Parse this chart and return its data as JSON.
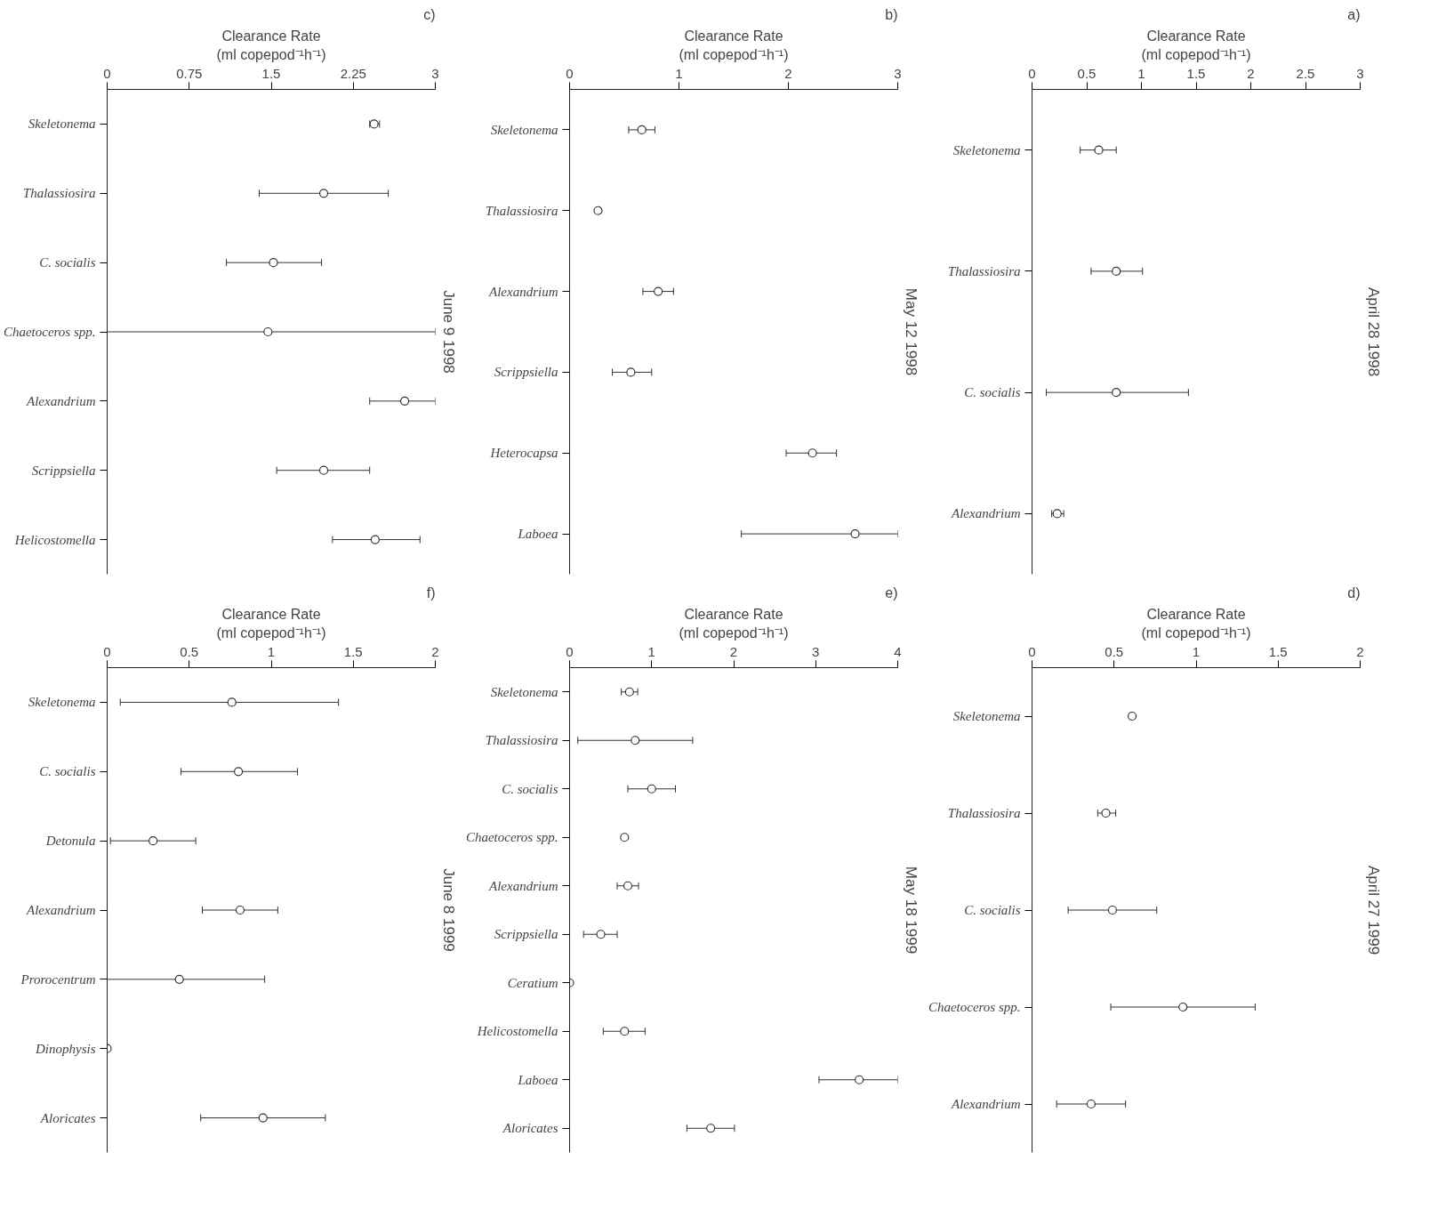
{
  "chart_data": [
    {
      "type": "scatter",
      "orientation": "horizontal",
      "title": "a)",
      "subtitle": "April 28 1998",
      "xlabel": "Clearance Rate\n(ml copepod⁻¹h⁻¹)",
      "marker": "circle",
      "color": "#333333",
      "xlim": [
        0,
        3
      ],
      "xticks": [
        0,
        0.5,
        1,
        1.5,
        2,
        2.5,
        3
      ],
      "categories": [
        "Skeletonema",
        "Thalassiosira",
        "C. socialis",
        "Alexandrium"
      ],
      "values": [
        0.61,
        0.77,
        0.77,
        0.23
      ],
      "errors": [
        [
          0.44,
          0.77
        ],
        [
          0.54,
          1.01
        ],
        [
          0.13,
          1.43
        ],
        [
          0.18,
          0.29
        ]
      ]
    },
    {
      "type": "scatter",
      "orientation": "horizontal",
      "title": "b)",
      "subtitle": "May 12 1998",
      "xlabel": "Clearance Rate\n(ml copepod⁻¹h⁻¹)",
      "marker": "circle",
      "color": "#333333",
      "xlim": [
        0,
        3
      ],
      "xticks": [
        0,
        1,
        2,
        3
      ],
      "categories": [
        "Skeletonema",
        "Thalassiosira",
        "Alexandrium",
        "Scrippsiella",
        "Heterocapsa",
        "Laboea"
      ],
      "values": [
        0.66,
        0.26,
        0.81,
        0.56,
        2.22,
        2.61
      ],
      "errors": [
        [
          0.54,
          0.78
        ],
        null,
        [
          0.67,
          0.95
        ],
        [
          0.39,
          0.75
        ],
        [
          1.98,
          2.44
        ],
        [
          1.57,
          3.0
        ]
      ]
    },
    {
      "type": "scatter",
      "orientation": "horizontal",
      "title": "c)",
      "subtitle": "June 9 1998",
      "xlabel": "Clearance Rate\n(ml copepod⁻¹h⁻¹)",
      "marker": "circle",
      "color": "#333333",
      "xlim": [
        0,
        3
      ],
      "xticks": [
        0,
        0.75,
        1.5,
        2.25,
        3
      ],
      "categories": [
        "Skeletonema",
        "Thalassiosira",
        "C. socialis",
        "Chaetoceros spp.",
        "Alexandrium",
        "Scrippsiella",
        "Helicostomella"
      ],
      "values": [
        2.44,
        1.98,
        1.52,
        1.47,
        2.72,
        1.98,
        2.45
      ],
      "errors": [
        [
          2.4,
          2.49
        ],
        [
          1.39,
          2.57
        ],
        [
          1.09,
          1.96
        ],
        [
          0,
          3
        ],
        [
          2.4,
          3.0
        ],
        [
          1.55,
          2.4
        ],
        [
          2.06,
          2.86
        ]
      ]
    },
    {
      "type": "scatter",
      "orientation": "horizontal",
      "title": "d)",
      "subtitle": "April 27 1999",
      "xlabel": "Clearance Rate\n(ml copepod⁻¹h⁻¹)",
      "marker": "circle",
      "color": "#333333",
      "xlim": [
        0,
        2
      ],
      "xticks": [
        0,
        0.5,
        1,
        1.5,
        2
      ],
      "categories": [
        "Skeletonema",
        "Thalassiosira",
        "C. socialis",
        "Chaetoceros spp.",
        "Alexandrium"
      ],
      "values": [
        0.61,
        0.45,
        0.49,
        0.92,
        0.36
      ],
      "errors": [
        null,
        [
          0.4,
          0.51
        ],
        [
          0.22,
          0.76
        ],
        [
          0.48,
          1.36
        ],
        [
          0.15,
          0.57
        ]
      ]
    },
    {
      "type": "scatter",
      "orientation": "horizontal",
      "title": "e)",
      "subtitle": "May 18 1999",
      "xlabel": "Clearance Rate\n(ml copepod⁻¹h⁻¹)",
      "marker": "circle",
      "color": "#333333",
      "xlim": [
        0,
        4
      ],
      "xticks": [
        0,
        1,
        2,
        3,
        4
      ],
      "categories": [
        "Skeletonema",
        "Thalassiosira",
        "C. socialis",
        "Chaetoceros spp.",
        "Alexandrium",
        "Scrippsiella",
        "Ceratium",
        "Helicostomella",
        "Laboea",
        "Aloricates"
      ],
      "values": [
        0.73,
        0.8,
        1.0,
        0.67,
        0.71,
        0.38,
        0,
        0.67,
        3.53,
        1.72
      ],
      "errors": [
        [
          0.63,
          0.83
        ],
        [
          0.1,
          1.5
        ],
        [
          0.71,
          1.29
        ],
        null,
        [
          0.58,
          0.84
        ],
        [
          0.17,
          0.58
        ],
        null,
        [
          0.41,
          0.92
        ],
        [
          3.04,
          4.0
        ],
        [
          1.43,
          2.01
        ]
      ]
    },
    {
      "type": "scatter",
      "orientation": "horizontal",
      "title": "f)",
      "subtitle": "June 8 1999",
      "xlabel": "Clearance Rate\n(ml copepod⁻¹h⁻¹)",
      "marker": "circle",
      "color": "#333333",
      "xlim": [
        0,
        2
      ],
      "xticks": [
        0,
        0.5,
        1,
        1.5,
        2
      ],
      "categories": [
        "Skeletonema",
        "C. socialis",
        "Detonula",
        "Alexandrium",
        "Prorocentrum",
        "Dinophysis",
        "Aloricates"
      ],
      "values": [
        0.76,
        0.8,
        0.28,
        0.81,
        0.44,
        0,
        0.95
      ],
      "errors": [
        [
          0.08,
          1.41
        ],
        [
          0.45,
          1.16
        ],
        [
          0.02,
          0.54
        ],
        [
          0.58,
          1.04
        ],
        [
          0,
          0.96
        ],
        null,
        [
          0.57,
          1.33
        ]
      ]
    }
  ]
}
